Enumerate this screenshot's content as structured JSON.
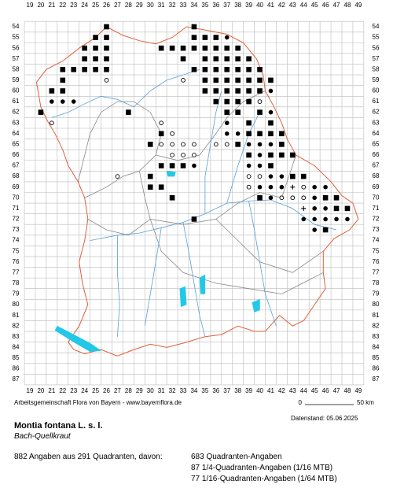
{
  "grid": {
    "columns": [
      19,
      20,
      21,
      22,
      23,
      24,
      25,
      26,
      27,
      28,
      29,
      30,
      31,
      32,
      33,
      34,
      35,
      36,
      37,
      38,
      39,
      40,
      41,
      42,
      43,
      44,
      45,
      46,
      47,
      48,
      49
    ],
    "rows": [
      54,
      55,
      56,
      57,
      58,
      59,
      60,
      61,
      62,
      63,
      64,
      65,
      66,
      67,
      68,
      69,
      70,
      71,
      72,
      73,
      74,
      75,
      76,
      77,
      78,
      79,
      80,
      81,
      82,
      83,
      84,
      85,
      86,
      87
    ]
  },
  "markers": [
    [
      26,
      54,
      "s"
    ],
    [
      34,
      54,
      "s"
    ],
    [
      25,
      55,
      "s"
    ],
    [
      26,
      55,
      "s"
    ],
    [
      34,
      55,
      "s"
    ],
    [
      35,
      55,
      "s"
    ],
    [
      36,
      55,
      "s"
    ],
    [
      37,
      55,
      "c"
    ],
    [
      24,
      56,
      "s"
    ],
    [
      25,
      56,
      "s"
    ],
    [
      26,
      56,
      "s"
    ],
    [
      31,
      56,
      "s"
    ],
    [
      32,
      56,
      "s"
    ],
    [
      33,
      56,
      "s"
    ],
    [
      34,
      56,
      "s"
    ],
    [
      35,
      56,
      "s"
    ],
    [
      36,
      56,
      "s"
    ],
    [
      37,
      56,
      "s"
    ],
    [
      38,
      56,
      "s"
    ],
    [
      24,
      57,
      "s"
    ],
    [
      25,
      57,
      "s"
    ],
    [
      26,
      57,
      "s"
    ],
    [
      33,
      57,
      "s"
    ],
    [
      35,
      57,
      "s"
    ],
    [
      36,
      57,
      "s"
    ],
    [
      37,
      57,
      "s"
    ],
    [
      38,
      57,
      "s"
    ],
    [
      39,
      57,
      "s"
    ],
    [
      22,
      58,
      "s"
    ],
    [
      23,
      58,
      "s"
    ],
    [
      24,
      58,
      "s"
    ],
    [
      25,
      58,
      "s"
    ],
    [
      26,
      58,
      "s"
    ],
    [
      34,
      58,
      "s"
    ],
    [
      35,
      58,
      "s"
    ],
    [
      36,
      58,
      "s"
    ],
    [
      37,
      58,
      "s"
    ],
    [
      38,
      58,
      "s"
    ],
    [
      39,
      58,
      "s"
    ],
    [
      40,
      58,
      "s"
    ],
    [
      22,
      59,
      "s"
    ],
    [
      26,
      59,
      "o"
    ],
    [
      33,
      59,
      "o"
    ],
    [
      35,
      59,
      "s"
    ],
    [
      36,
      59,
      "s"
    ],
    [
      37,
      59,
      "s"
    ],
    [
      38,
      59,
      "s"
    ],
    [
      39,
      59,
      "s"
    ],
    [
      40,
      59,
      "s"
    ],
    [
      41,
      59,
      "s"
    ],
    [
      21,
      60,
      "s"
    ],
    [
      22,
      60,
      "s"
    ],
    [
      35,
      60,
      "s"
    ],
    [
      36,
      60,
      "s"
    ],
    [
      37,
      60,
      "s"
    ],
    [
      38,
      60,
      "s"
    ],
    [
      39,
      60,
      "s"
    ],
    [
      40,
      60,
      "s"
    ],
    [
      41,
      60,
      "c"
    ],
    [
      21,
      61,
      "c"
    ],
    [
      22,
      61,
      "c"
    ],
    [
      23,
      61,
      "c"
    ],
    [
      36,
      61,
      "s"
    ],
    [
      37,
      61,
      "s"
    ],
    [
      38,
      61,
      "s"
    ],
    [
      39,
      61,
      "s"
    ],
    [
      40,
      61,
      "o"
    ],
    [
      20,
      62,
      "s"
    ],
    [
      28,
      62,
      "s"
    ],
    [
      37,
      62,
      "s"
    ],
    [
      38,
      62,
      "s"
    ],
    [
      40,
      62,
      "s"
    ],
    [
      41,
      62,
      "c"
    ],
    [
      21,
      63,
      "o"
    ],
    [
      31,
      63,
      "o"
    ],
    [
      37,
      63,
      "c"
    ],
    [
      39,
      63,
      "s"
    ],
    [
      41,
      63,
      "s"
    ],
    [
      31,
      64,
      "s"
    ],
    [
      32,
      64,
      "o"
    ],
    [
      37,
      64,
      "c"
    ],
    [
      38,
      64,
      "c"
    ],
    [
      39,
      64,
      "s"
    ],
    [
      40,
      64,
      "s"
    ],
    [
      41,
      64,
      "s"
    ],
    [
      42,
      64,
      "s"
    ],
    [
      30,
      65,
      "s"
    ],
    [
      31,
      65,
      "o"
    ],
    [
      32,
      65,
      "o"
    ],
    [
      33,
      65,
      "o"
    ],
    [
      34,
      65,
      "o"
    ],
    [
      36,
      65,
      "o"
    ],
    [
      37,
      65,
      "o"
    ],
    [
      38,
      65,
      "s"
    ],
    [
      39,
      65,
      "c"
    ],
    [
      40,
      65,
      "c"
    ],
    [
      41,
      65,
      "c"
    ],
    [
      42,
      65,
      "s"
    ],
    [
      32,
      66,
      "o"
    ],
    [
      33,
      66,
      "o"
    ],
    [
      34,
      66,
      "o"
    ],
    [
      39,
      66,
      "s"
    ],
    [
      40,
      66,
      "c"
    ],
    [
      41,
      66,
      "s"
    ],
    [
      42,
      66,
      "s"
    ],
    [
      43,
      66,
      "s"
    ],
    [
      31,
      67,
      "s"
    ],
    [
      32,
      67,
      "s"
    ],
    [
      33,
      67,
      "s"
    ],
    [
      34,
      67,
      "c"
    ],
    [
      39,
      67,
      "c"
    ],
    [
      40,
      67,
      "c"
    ],
    [
      41,
      67,
      "s"
    ],
    [
      27,
      68,
      "o"
    ],
    [
      30,
      68,
      "s"
    ],
    [
      39,
      68,
      "o"
    ],
    [
      40,
      68,
      "o"
    ],
    [
      41,
      68,
      "c"
    ],
    [
      42,
      68,
      "c"
    ],
    [
      43,
      68,
      "s"
    ],
    [
      44,
      68,
      "s"
    ],
    [
      30,
      69,
      "s"
    ],
    [
      31,
      69,
      "s"
    ],
    [
      39,
      69,
      "o"
    ],
    [
      40,
      69,
      "c"
    ],
    [
      41,
      69,
      "c"
    ],
    [
      42,
      69,
      "c"
    ],
    [
      43,
      69,
      "p"
    ],
    [
      44,
      69,
      "o"
    ],
    [
      45,
      69,
      "c"
    ],
    [
      46,
      69,
      "c"
    ],
    [
      32,
      70,
      "s"
    ],
    [
      40,
      70,
      "s"
    ],
    [
      41,
      70,
      "c"
    ],
    [
      42,
      70,
      "o"
    ],
    [
      43,
      70,
      "o"
    ],
    [
      44,
      70,
      "o"
    ],
    [
      45,
      70,
      "c"
    ],
    [
      46,
      70,
      "s"
    ],
    [
      47,
      70,
      "s"
    ],
    [
      44,
      71,
      "p"
    ],
    [
      45,
      71,
      "c"
    ],
    [
      46,
      71,
      "c"
    ],
    [
      47,
      71,
      "s"
    ],
    [
      48,
      71,
      "s"
    ],
    [
      34,
      72,
      "s"
    ],
    [
      44,
      72,
      "c"
    ],
    [
      45,
      72,
      "c"
    ],
    [
      46,
      72,
      "c"
    ],
    [
      47,
      72,
      "c"
    ],
    [
      48,
      72,
      "c"
    ],
    [
      45,
      73,
      "c"
    ],
    [
      46,
      73,
      "s"
    ]
  ],
  "scale": {
    "start": "0",
    "end": "50 km"
  },
  "footer": {
    "credit": "Arbeitsgemeinschaft Flora von Bayern - www.bayernflora.de",
    "date": "Datenstand: 05.06.2025"
  },
  "species": {
    "name": "Montia fontana L. s. l.",
    "common": "Bach-Quellkraut"
  },
  "stats": {
    "summary": "882 Angaben aus 291 Quadranten, davon:",
    "lines": [
      "683 Quadranten-Angaben",
      "87 1/4-Quadranten-Angaben (1/16 MTB)",
      "77 1/16-Quadranten-Angaben (1/64 MTB)"
    ]
  }
}
